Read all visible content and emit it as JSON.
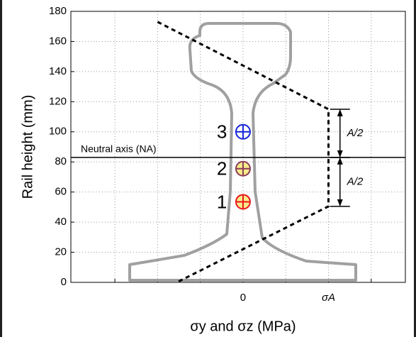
{
  "chart_data": {
    "type": "scatter",
    "xlabel": "σy and σz (MPa)",
    "ylabel": "Rail height (mm)",
    "xlim": [
      -4.03,
      3.8
    ],
    "ylim": [
      0,
      180
    ],
    "xticks": [
      0,
      {
        "value": 2,
        "label": "σA"
      }
    ],
    "x_minor_ticks": [
      -3,
      -2,
      -1,
      1,
      3
    ],
    "yticks": [
      0,
      20,
      40,
      60,
      80,
      100,
      120,
      140,
      160,
      180
    ],
    "grid": true,
    "points": {
      "x": [
        0,
        0,
        0
      ],
      "y": [
        53.5,
        75.5,
        100
      ],
      "labels": [
        "1",
        "2",
        "3"
      ],
      "fills": [
        "#f7ec8a",
        "#f7ec8a",
        "#ffffff"
      ],
      "colors": [
        "#e8141c",
        "#8c3a5a",
        "#1424d8"
      ]
    },
    "stress_line": {
      "x": [
        -2,
        2,
        2,
        -1.55
      ],
      "y": [
        173,
        115,
        50.5,
        0
      ]
    },
    "neutral_axis": {
      "y": 83,
      "label": "Neutral axis (NA)"
    },
    "dimensions": [
      {
        "x": 2.27,
        "from": 115,
        "to": 83,
        "label": "A/2"
      },
      {
        "x": 2.27,
        "from": 83,
        "to": 50.5,
        "label": "A/2"
      }
    ]
  }
}
